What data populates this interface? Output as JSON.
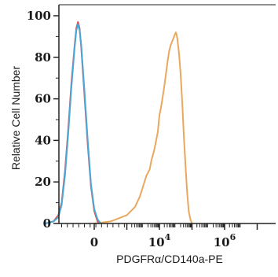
{
  "chart_data": {
    "type": "area",
    "xlabel": "PDGFRα/CD140a-PE",
    "ylabel": "Relative Cell Number",
    "y_ticks": [
      "0",
      "20",
      "40",
      "60",
      "80",
      "100"
    ],
    "x_tick_labels": [
      {
        "base": "0",
        "exp": ""
      },
      {
        "base": "10",
        "exp": "4"
      },
      {
        "base": "10",
        "exp": "6"
      }
    ],
    "ylim": [
      0,
      105
    ],
    "x_scale": "biexponential",
    "grid": false,
    "series": [
      {
        "color": "#e8a860",
        "fill": false,
        "points": [
          [
            0.0,
            0
          ],
          [
            1.0,
            1
          ],
          [
            2.0,
            4
          ],
          [
            2.5,
            8
          ],
          [
            2.8,
            13
          ],
          [
            3.0,
            18
          ],
          [
            3.2,
            23
          ],
          [
            3.4,
            26
          ],
          [
            3.5,
            30
          ],
          [
            3.7,
            36
          ],
          [
            3.9,
            44
          ],
          [
            4.0,
            52
          ],
          [
            4.1,
            56
          ],
          [
            4.2,
            61
          ],
          [
            4.3,
            66
          ],
          [
            4.4,
            72
          ],
          [
            4.5,
            78
          ],
          [
            4.6,
            83
          ],
          [
            4.7,
            86
          ],
          [
            4.8,
            88
          ],
          [
            4.9,
            90
          ],
          [
            5.0,
            92
          ],
          [
            5.05,
            91
          ],
          [
            5.1,
            89
          ],
          [
            5.2,
            82
          ],
          [
            5.3,
            72
          ],
          [
            5.4,
            58
          ],
          [
            5.5,
            42
          ],
          [
            5.6,
            28
          ],
          [
            5.7,
            15
          ],
          [
            5.8,
            6
          ],
          [
            5.9,
            2
          ],
          [
            6.0,
            0
          ]
        ]
      },
      {
        "color": "#e05050",
        "fill": false,
        "points": [
          [
            -3.0,
            0
          ],
          [
            -2.5,
            1
          ],
          [
            -2.2,
            4
          ],
          [
            -2.0,
            10
          ],
          [
            -1.8,
            25
          ],
          [
            -1.6,
            45
          ],
          [
            -1.4,
            68
          ],
          [
            -1.2,
            86
          ],
          [
            -1.1,
            94
          ],
          [
            -1.0,
            97
          ],
          [
            -0.9,
            94
          ],
          [
            -0.8,
            85
          ],
          [
            -0.6,
            62
          ],
          [
            -0.4,
            38
          ],
          [
            -0.2,
            18
          ],
          [
            0.0,
            6
          ],
          [
            0.2,
            1
          ],
          [
            0.4,
            0
          ]
        ]
      },
      {
        "color": "#4aa8d8",
        "fill": false,
        "points": [
          [
            -3.0,
            0
          ],
          [
            -2.5,
            1
          ],
          [
            -2.2,
            3
          ],
          [
            -2.0,
            9
          ],
          [
            -1.8,
            23
          ],
          [
            -1.6,
            43
          ],
          [
            -1.4,
            66
          ],
          [
            -1.2,
            85
          ],
          [
            -1.1,
            93
          ],
          [
            -1.0,
            96
          ],
          [
            -0.9,
            93
          ],
          [
            -0.8,
            86
          ],
          [
            -0.6,
            64
          ],
          [
            -0.4,
            40
          ],
          [
            -0.2,
            19
          ],
          [
            0.0,
            7
          ],
          [
            0.2,
            2
          ],
          [
            0.4,
            0
          ]
        ]
      }
    ]
  }
}
